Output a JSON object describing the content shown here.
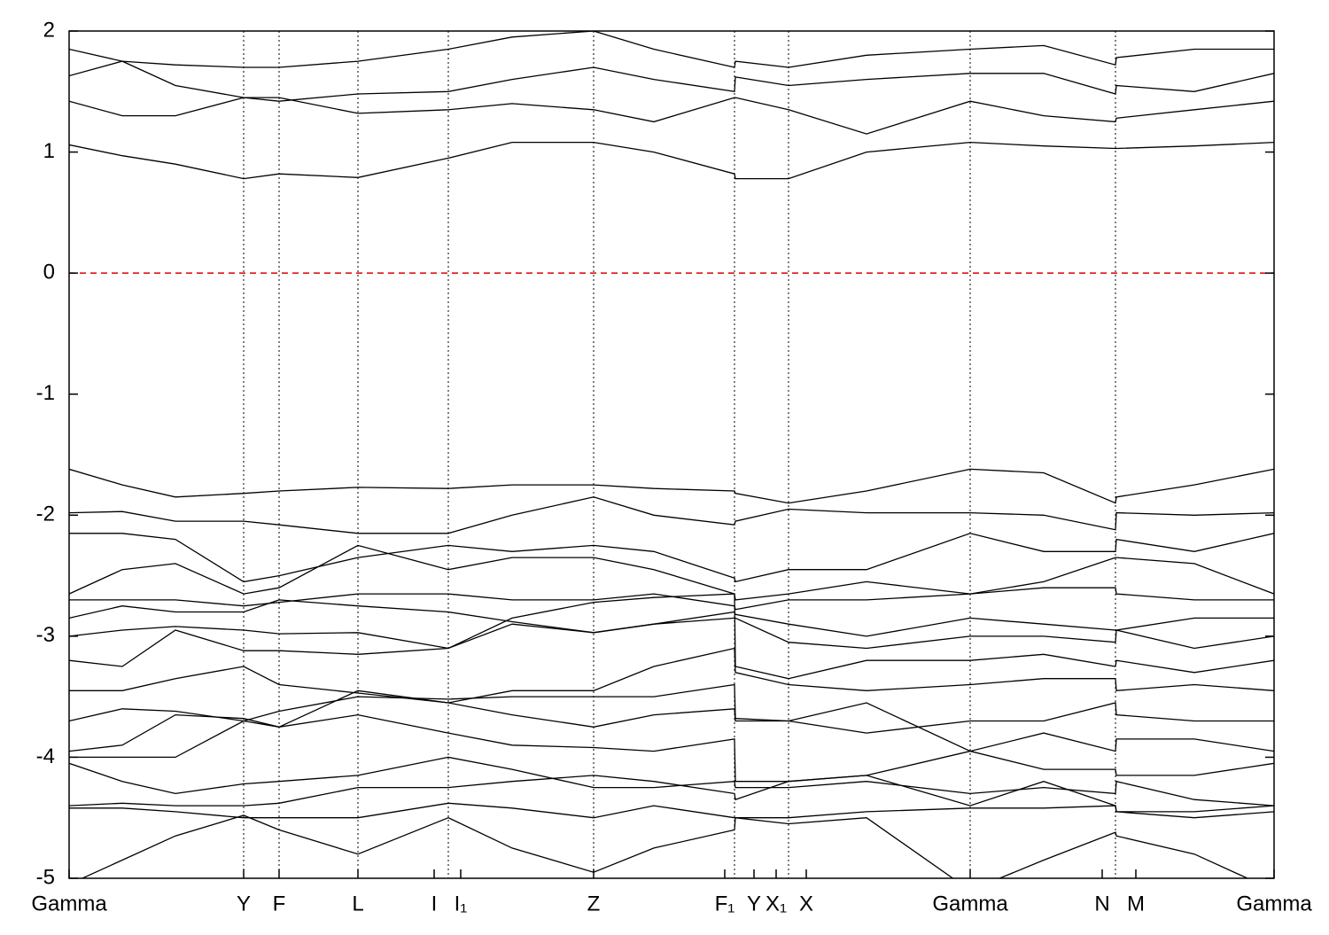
{
  "chart_data": {
    "type": "bands",
    "x": [
      0,
      60,
      120,
      197,
      237,
      326,
      428,
      500,
      592,
      660,
      751,
      752,
      812,
      900,
      1017,
      1100,
      1181,
      1182,
      1270,
      1360
    ],
    "bands": [
      [
        1.06,
        0.97,
        0.9,
        0.78,
        0.82,
        0.79,
        0.95,
        1.08,
        1.08,
        1.0,
        0.82,
        0.78,
        0.78,
        1.0,
        1.08,
        1.05,
        1.03,
        1.03,
        1.05,
        1.08
      ],
      [
        1.42,
        1.3,
        1.3,
        1.45,
        1.45,
        1.32,
        1.35,
        1.4,
        1.35,
        1.25,
        1.45,
        1.45,
        1.35,
        1.15,
        1.42,
        1.3,
        1.25,
        1.28,
        1.35,
        1.42
      ],
      [
        1.63,
        1.75,
        1.55,
        1.45,
        1.42,
        1.48,
        1.5,
        1.6,
        1.7,
        1.6,
        1.5,
        1.62,
        1.55,
        1.6,
        1.65,
        1.65,
        1.48,
        1.55,
        1.5,
        1.65
      ],
      [
        1.85,
        1.75,
        1.72,
        1.7,
        1.7,
        1.75,
        1.85,
        1.95,
        2.0,
        1.85,
        1.7,
        1.75,
        1.7,
        1.8,
        1.85,
        1.88,
        1.72,
        1.78,
        1.85,
        1.85
      ],
      [
        -1.62,
        -1.75,
        -1.85,
        -1.82,
        -1.8,
        -1.77,
        -1.78,
        -1.75,
        -1.75,
        -1.78,
        -1.8,
        -1.82,
        -1.9,
        -1.8,
        -1.62,
        -1.65,
        -1.9,
        -1.85,
        -1.75,
        -1.62
      ],
      [
        -1.98,
        -1.97,
        -2.05,
        -2.05,
        -2.08,
        -2.15,
        -2.15,
        -2.0,
        -1.85,
        -2.0,
        -2.08,
        -2.05,
        -1.95,
        -1.98,
        -1.98,
        -2.0,
        -2.12,
        -1.98,
        -2.0,
        -1.98
      ],
      [
        -2.15,
        -2.15,
        -2.2,
        -2.55,
        -2.5,
        -2.35,
        -2.25,
        -2.3,
        -2.25,
        -2.3,
        -2.52,
        -2.55,
        -2.45,
        -2.45,
        -2.15,
        -2.3,
        -2.3,
        -2.2,
        -2.3,
        -2.15
      ],
      [
        -2.65,
        -2.45,
        -2.4,
        -2.65,
        -2.6,
        -2.25,
        -2.45,
        -2.35,
        -2.35,
        -2.45,
        -2.65,
        -2.7,
        -2.65,
        -2.55,
        -2.65,
        -2.55,
        -2.35,
        -2.35,
        -2.4,
        -2.65
      ],
      [
        -2.7,
        -2.7,
        -2.7,
        -2.75,
        -2.72,
        -2.65,
        -2.65,
        -2.7,
        -2.7,
        -2.65,
        -2.75,
        -2.78,
        -2.7,
        -2.7,
        -2.65,
        -2.6,
        -2.6,
        -2.65,
        -2.7,
        -2.7
      ],
      [
        -2.85,
        -2.75,
        -2.8,
        -2.8,
        -2.7,
        -2.75,
        -2.8,
        -2.88,
        -2.97,
        -2.9,
        -2.8,
        -2.82,
        -2.9,
        -3.0,
        -2.85,
        -2.9,
        -2.95,
        -2.95,
        -2.85,
        -2.85
      ],
      [
        -3.0,
        -2.95,
        -2.92,
        -2.95,
        -2.98,
        -2.97,
        -3.1,
        -2.9,
        -2.97,
        -2.9,
        -2.85,
        -2.85,
        -3.05,
        -3.1,
        -3.0,
        -3.0,
        -3.05,
        -2.95,
        -3.1,
        -3.0
      ],
      [
        -3.2,
        -3.25,
        -2.95,
        -3.12,
        -3.12,
        -3.15,
        -3.1,
        -2.85,
        -2.72,
        -2.68,
        -2.65,
        -3.25,
        -3.35,
        -3.2,
        -3.2,
        -3.15,
        -3.25,
        -3.2,
        -3.3,
        -3.2
      ],
      [
        -3.45,
        -3.45,
        -3.35,
        -3.25,
        -3.4,
        -3.47,
        -3.55,
        -3.45,
        -3.45,
        -3.25,
        -3.1,
        -3.3,
        -3.4,
        -3.45,
        -3.4,
        -3.35,
        -3.35,
        -3.45,
        -3.4,
        -3.45
      ],
      [
        -3.7,
        -3.6,
        -3.62,
        -3.7,
        -3.62,
        -3.5,
        -3.52,
        -3.5,
        -3.5,
        -3.5,
        -3.4,
        -3.68,
        -3.7,
        -3.8,
        -3.7,
        -3.7,
        -3.55,
        -3.65,
        -3.7,
        -3.7
      ],
      [
        -3.95,
        -3.9,
        -3.65,
        -3.68,
        -3.75,
        -3.45,
        -3.55,
        -3.65,
        -3.75,
        -3.65,
        -3.6,
        -3.7,
        -3.7,
        -3.55,
        -3.95,
        -3.8,
        -3.95,
        -3.85,
        -3.85,
        -3.95
      ],
      [
        -4.0,
        -4.0,
        -4.0,
        -3.7,
        -3.75,
        -3.65,
        -3.8,
        -3.9,
        -3.92,
        -3.95,
        -3.85,
        -4.2,
        -4.2,
        -4.15,
        -3.95,
        -4.1,
        -4.1,
        -4.15,
        -4.15,
        -4.05
      ],
      [
        -4.05,
        -4.2,
        -4.3,
        -4.22,
        -4.2,
        -4.15,
        -4.0,
        -4.1,
        -4.25,
        -4.25,
        -4.2,
        -4.25,
        -4.25,
        -4.2,
        -4.3,
        -4.25,
        -4.3,
        -4.2,
        -4.35,
        -4.4
      ],
      [
        -4.4,
        -4.38,
        -4.4,
        -4.4,
        -4.38,
        -4.25,
        -4.25,
        -4.2,
        -4.15,
        -4.2,
        -4.3,
        -4.35,
        -4.2,
        -4.15,
        -4.4,
        -4.2,
        -4.4,
        -4.45,
        -4.45,
        -4.4
      ],
      [
        -4.42,
        -4.42,
        -4.45,
        -4.5,
        -4.5,
        -4.5,
        -4.38,
        -4.42,
        -4.5,
        -4.4,
        -4.5,
        -4.5,
        -4.5,
        -4.45,
        -4.42,
        -4.42,
        -4.4,
        -4.45,
        -4.5,
        -4.45
      ],
      [
        -5.05,
        -4.85,
        -4.65,
        -4.48,
        -4.6,
        -4.8,
        -4.5,
        -4.75,
        -4.95,
        -4.75,
        -4.6,
        -4.5,
        -4.55,
        -4.5,
        -5.1,
        -4.85,
        -4.62,
        -4.65,
        -4.8,
        -5.1
      ]
    ],
    "color": "#000000",
    "xlim": [
      0,
      1360
    ],
    "xticks": [
      {
        "value": 0,
        "label": "Gamma"
      },
      {
        "value": 197,
        "label": "Y"
      },
      {
        "value": 237,
        "label": "F"
      },
      {
        "value": 326,
        "label": "L"
      },
      {
        "value": 412,
        "label": "I"
      },
      {
        "value": 442,
        "label": "I₁"
      },
      {
        "value": 592,
        "label": "Z"
      },
      {
        "value": 740,
        "label": "F₁"
      },
      {
        "value": 773,
        "label": "Y"
      },
      {
        "value": 798,
        "label": "X₁"
      },
      {
        "value": 832,
        "label": "X"
      },
      {
        "value": 1017,
        "label": "Gamma"
      },
      {
        "value": 1166,
        "label": "N"
      },
      {
        "value": 1204,
        "label": "M"
      },
      {
        "value": 1360,
        "label": "Gamma"
      }
    ],
    "vlines": [
      197,
      237,
      326,
      428,
      592,
      751,
      812,
      1017,
      1181
    ],
    "ylim": [
      -5,
      2
    ],
    "yticks": [
      2,
      1,
      0,
      -1,
      -2,
      -3,
      -4,
      -5
    ],
    "hline": 0,
    "hline_color": "#dd0000"
  }
}
